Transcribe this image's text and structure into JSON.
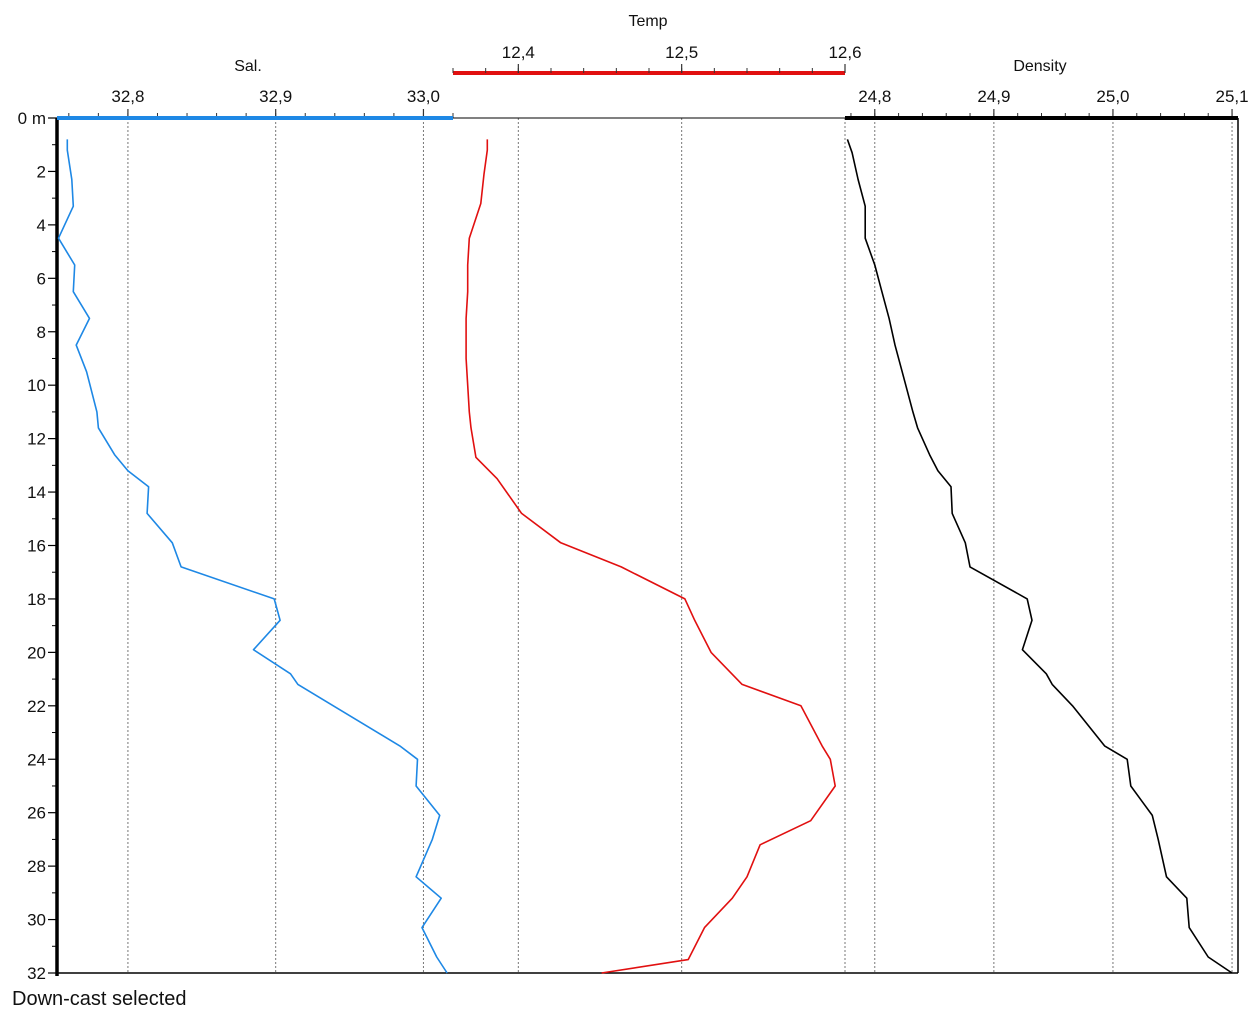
{
  "status_text": "Down-cast selected",
  "chart_data": {
    "type": "line",
    "y_axis": {
      "range": [
        0,
        32
      ],
      "ticks": [
        0,
        2,
        4,
        6,
        8,
        10,
        12,
        14,
        16,
        18,
        20,
        22,
        24,
        26,
        28,
        30,
        32
      ],
      "tick_labels": [
        "0 m",
        "2",
        "4",
        "6",
        "8",
        "10",
        "12",
        "14",
        "16",
        "18",
        "20",
        "22",
        "24",
        "26",
        "28",
        "30",
        "32"
      ],
      "inverted": true
    },
    "grid": "vertical dotted",
    "axes": [
      {
        "key": "sal",
        "title": "Sal.",
        "color": "#1e88e5",
        "range": [
          32.752,
          33.02
        ],
        "ticks": [
          32.8,
          32.9,
          33.0
        ],
        "tick_labels": [
          "32,8",
          "32,9",
          "33,0"
        ]
      },
      {
        "key": "temp",
        "title": "Temp",
        "color": "#e11010",
        "range": [
          12.36,
          12.6
        ],
        "ticks": [
          12.4,
          12.5,
          12.6
        ],
        "tick_labels": [
          "12,4",
          "12,5",
          "12,6"
        ]
      },
      {
        "key": "density",
        "title": "Density",
        "color": "#000000",
        "range": [
          24.775,
          25.105
        ],
        "ticks": [
          24.8,
          24.9,
          25.0,
          25.1
        ],
        "tick_labels": [
          "24,8",
          "24,9",
          "25,0",
          "25,1"
        ]
      }
    ],
    "series": [
      {
        "key": "sal",
        "depth": [
          0.8,
          1.2,
          2.3,
          3.3,
          4.5,
          5.5,
          6.5,
          7.5,
          8.5,
          9.5,
          11.0,
          11.6,
          12.6,
          13.2,
          13.8,
          14.8,
          15.9,
          16.8,
          18.0,
          18.8,
          19.9,
          20.8,
          21.2,
          22.0,
          23.5,
          24.0,
          25.0,
          26.1,
          27.0,
          28.4,
          29.2,
          30.3,
          31.4,
          32.0
        ],
        "values": [
          32.759,
          32.759,
          32.762,
          32.763,
          32.753,
          32.764,
          32.763,
          32.774,
          32.765,
          32.772,
          32.779,
          32.78,
          32.791,
          32.8,
          32.814,
          32.813,
          32.83,
          32.836,
          32.899,
          32.903,
          32.885,
          32.91,
          32.915,
          32.939,
          32.984,
          32.996,
          32.995,
          33.011,
          33.006,
          32.995,
          33.012,
          32.999,
          33.009,
          33.016
        ]
      },
      {
        "key": "temp",
        "depth": [
          0.8,
          1.2,
          2.1,
          3.2,
          4.5,
          5.5,
          6.5,
          7.5,
          9.0,
          10.0,
          11.0,
          11.6,
          12.7,
          13.5,
          14.8,
          15.9,
          16.8,
          18.0,
          18.8,
          20.0,
          21.2,
          22.0,
          23.5,
          24.0,
          25.0,
          26.3,
          27.2,
          28.4,
          29.2,
          30.3,
          31.5,
          32.0
        ],
        "values": [
          12.381,
          12.381,
          12.379,
          12.377,
          12.37,
          12.369,
          12.369,
          12.368,
          12.368,
          12.369,
          12.37,
          12.371,
          12.374,
          12.387,
          12.402,
          12.426,
          12.463,
          12.502,
          12.508,
          12.518,
          12.537,
          12.573,
          12.586,
          12.591,
          12.594,
          12.579,
          12.548,
          12.54,
          12.531,
          12.514,
          12.504,
          12.451
        ]
      },
      {
        "key": "density",
        "depth": [
          0.8,
          1.3,
          2.3,
          3.3,
          4.5,
          5.5,
          6.5,
          7.5,
          8.5,
          9.5,
          11.0,
          11.6,
          12.6,
          13.2,
          13.8,
          14.8,
          15.9,
          16.8,
          18.0,
          18.8,
          19.9,
          20.8,
          21.2,
          22.0,
          23.5,
          24.0,
          25.0,
          26.1,
          27.0,
          28.4,
          29.2,
          30.3,
          31.4,
          32.0
        ],
        "values": [
          24.777,
          24.781,
          24.786,
          24.792,
          24.792,
          24.8,
          24.806,
          24.812,
          24.817,
          24.823,
          24.832,
          24.836,
          24.846,
          24.853,
          24.864,
          24.865,
          24.876,
          24.88,
          24.928,
          24.932,
          24.924,
          24.944,
          24.949,
          24.966,
          24.993,
          25.012,
          25.015,
          25.033,
          25.038,
          25.045,
          25.062,
          25.064,
          25.08,
          25.1
        ]
      }
    ]
  }
}
